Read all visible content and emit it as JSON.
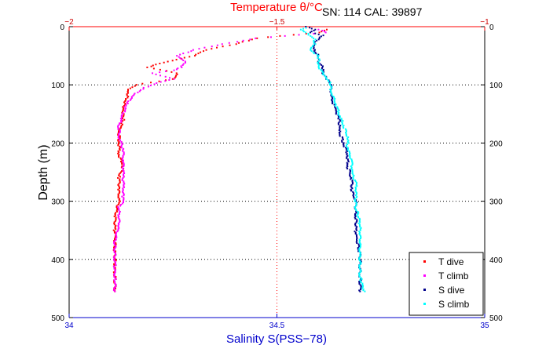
{
  "annotation": "SN: 114  CAL: 39897",
  "chart_data": {
    "type": "scatter",
    "xlabel_top": "Temperature θ/°C",
    "xlabel_bottom": "Salinity S(PSS−78)",
    "ylabel": "Depth (m)",
    "top_axis": {
      "lim": [
        -2,
        -1
      ],
      "ticks": [
        -2,
        -1.5,
        -1
      ],
      "tick_labels": [
        "−2",
        "−1.5",
        "−1"
      ]
    },
    "bottom_axis": {
      "lim": [
        34,
        35
      ],
      "ticks": [
        34,
        34.5,
        35
      ],
      "tick_labels": [
        "34",
        "34.5",
        "35"
      ]
    },
    "y_axis": {
      "lim": [
        0,
        500
      ],
      "reversed": true,
      "ticks": [
        0,
        100,
        200,
        300,
        400,
        500
      ],
      "tick_labels": [
        "0",
        "100",
        "200",
        "300",
        "400",
        "500"
      ]
    },
    "grid": true,
    "legend_location": "bottom-right",
    "colors": {
      "T dive": "#ff0000",
      "T climb": "#ff00ff",
      "S dive": "#00008b",
      "S climb": "#00ffff",
      "top_axis": "#ff0000",
      "bottom_axis": "#0000cc"
    },
    "series": [
      {
        "name": "T dive",
        "axis": "top",
        "depth": [
          5,
          10,
          20,
          30,
          40,
          50,
          55,
          60,
          65,
          70,
          80,
          90,
          100,
          110,
          120,
          140,
          160,
          180,
          200,
          220,
          240,
          260,
          280,
          300,
          330,
          360,
          390,
          420,
          450,
          455
        ],
        "x": [
          -1.38,
          -1.4,
          -1.55,
          -1.6,
          -1.67,
          -1.7,
          -1.73,
          -1.76,
          -1.79,
          -1.81,
          -1.74,
          -1.75,
          -1.84,
          -1.86,
          -1.86,
          -1.87,
          -1.87,
          -1.88,
          -1.88,
          -1.88,
          -1.87,
          -1.88,
          -1.88,
          -1.88,
          -1.89,
          -1.89,
          -1.89,
          -1.89,
          -1.89,
          -1.89
        ]
      },
      {
        "name": "T climb",
        "axis": "top",
        "depth": [
          455,
          430,
          400,
          370,
          340,
          310,
          300,
          290,
          270,
          250,
          230,
          210,
          190,
          170,
          150,
          130,
          115,
          105,
          95,
          90,
          80,
          75,
          70,
          60,
          50,
          40,
          30,
          20,
          10,
          5
        ],
        "x": [
          -1.89,
          -1.89,
          -1.89,
          -1.89,
          -1.88,
          -1.88,
          -1.87,
          -1.87,
          -1.87,
          -1.87,
          -1.87,
          -1.87,
          -1.88,
          -1.88,
          -1.87,
          -1.86,
          -1.84,
          -1.82,
          -1.78,
          -1.75,
          -1.8,
          -1.75,
          -1.73,
          -1.72,
          -1.74,
          -1.7,
          -1.63,
          -1.55,
          -1.38,
          -1.4
        ]
      },
      {
        "name": "S dive",
        "axis": "bottom",
        "depth": [
          0,
          5,
          10,
          15,
          20,
          30,
          40,
          50,
          60,
          70,
          80,
          90,
          100,
          120,
          140,
          160,
          180,
          200,
          220,
          240,
          260,
          280,
          300,
          330,
          360,
          390,
          420,
          450,
          455
        ],
        "x": [
          34.57,
          34.59,
          34.58,
          34.61,
          34.6,
          34.59,
          34.59,
          34.6,
          34.6,
          34.61,
          34.61,
          34.62,
          34.63,
          34.63,
          34.64,
          34.65,
          34.65,
          34.66,
          34.67,
          34.67,
          34.68,
          34.68,
          34.69,
          34.69,
          34.69,
          34.7,
          34.7,
          34.7,
          34.7
        ]
      },
      {
        "name": "S climb",
        "axis": "bottom",
        "depth": [
          455,
          430,
          400,
          370,
          340,
          310,
          290,
          270,
          250,
          230,
          210,
          190,
          170,
          150,
          130,
          110,
          100,
          90,
          80,
          70,
          60,
          50,
          40,
          30,
          20,
          10,
          5,
          2
        ],
        "x": [
          34.71,
          34.7,
          34.7,
          34.7,
          34.7,
          34.69,
          34.69,
          34.69,
          34.68,
          34.68,
          34.67,
          34.67,
          34.66,
          34.65,
          34.64,
          34.63,
          34.63,
          34.62,
          34.61,
          34.6,
          34.6,
          34.6,
          34.58,
          34.59,
          34.59,
          34.57,
          34.56,
          34.57
        ]
      }
    ]
  }
}
